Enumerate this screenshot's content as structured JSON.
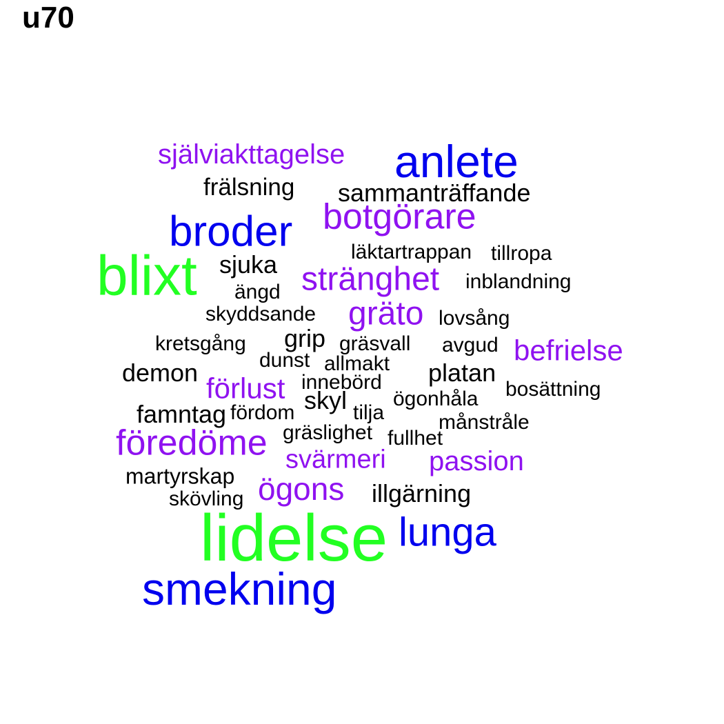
{
  "title": "u70",
  "palette": {
    "green": "#22ff22",
    "blue": "#0000ee",
    "purple": "#8f12f0",
    "black": "#000000"
  },
  "words": [
    {
      "text": "självi akttagelse",
      "color": "purple"
    },
    {
      "text": "anlete",
      "color": "blue"
    },
    {
      "text": "frälsning",
      "color": "black"
    },
    {
      "text": "sammanträffande",
      "color": "black"
    },
    {
      "text": "botgörare",
      "color": "purple"
    },
    {
      "text": "broder",
      "color": "blue"
    },
    {
      "text": "läktartrappan",
      "color": "black"
    },
    {
      "text": "tillropa",
      "color": "black"
    },
    {
      "text": "blixt",
      "color": "green"
    },
    {
      "text": "sjuka",
      "color": "black"
    },
    {
      "text": "stränghet",
      "color": "purple"
    },
    {
      "text": "inblandning",
      "color": "black"
    },
    {
      "text": "ängd",
      "color": "black"
    },
    {
      "text": "skyddsande",
      "color": "black"
    },
    {
      "text": "gräto",
      "color": "purple"
    },
    {
      "text": "lovsång",
      "color": "black"
    },
    {
      "text": "kretsgång",
      "color": "black"
    },
    {
      "text": "grip",
      "color": "black"
    },
    {
      "text": "gräsvall",
      "color": "black"
    },
    {
      "text": "avgud",
      "color": "black"
    },
    {
      "text": "befrielse",
      "color": "purple"
    },
    {
      "text": "dunst",
      "color": "black"
    },
    {
      "text": "allmakt",
      "color": "black"
    },
    {
      "text": "demon",
      "color": "black"
    },
    {
      "text": "platan",
      "color": "black"
    },
    {
      "text": "förlust",
      "color": "purple"
    },
    {
      "text": "innebörd",
      "color": "black"
    },
    {
      "text": "bosättning",
      "color": "black"
    },
    {
      "text": "skyl",
      "color": "black"
    },
    {
      "text": "ögonhåla",
      "color": "black"
    },
    {
      "text": "famntag",
      "color": "black"
    },
    {
      "text": "fördom",
      "color": "black"
    },
    {
      "text": "tilja",
      "color": "black"
    },
    {
      "text": "månstråle",
      "color": "black"
    },
    {
      "text": "gräslighet",
      "color": "black"
    },
    {
      "text": "fullhet",
      "color": "black"
    },
    {
      "text": "föredöme",
      "color": "purple"
    },
    {
      "text": "svärmeri",
      "color": "purple"
    },
    {
      "text": "passion",
      "color": "purple"
    },
    {
      "text": "martyrskap",
      "color": "black"
    },
    {
      "text": "ögons",
      "color": "purple"
    },
    {
      "text": "illgärning",
      "color": "black"
    },
    {
      "text": "skövling",
      "color": "black"
    },
    {
      "text": "lidelse",
      "color": "green"
    },
    {
      "text": "lunga",
      "color": "blue"
    },
    {
      "text": "smekning",
      "color": "blue"
    }
  ]
}
